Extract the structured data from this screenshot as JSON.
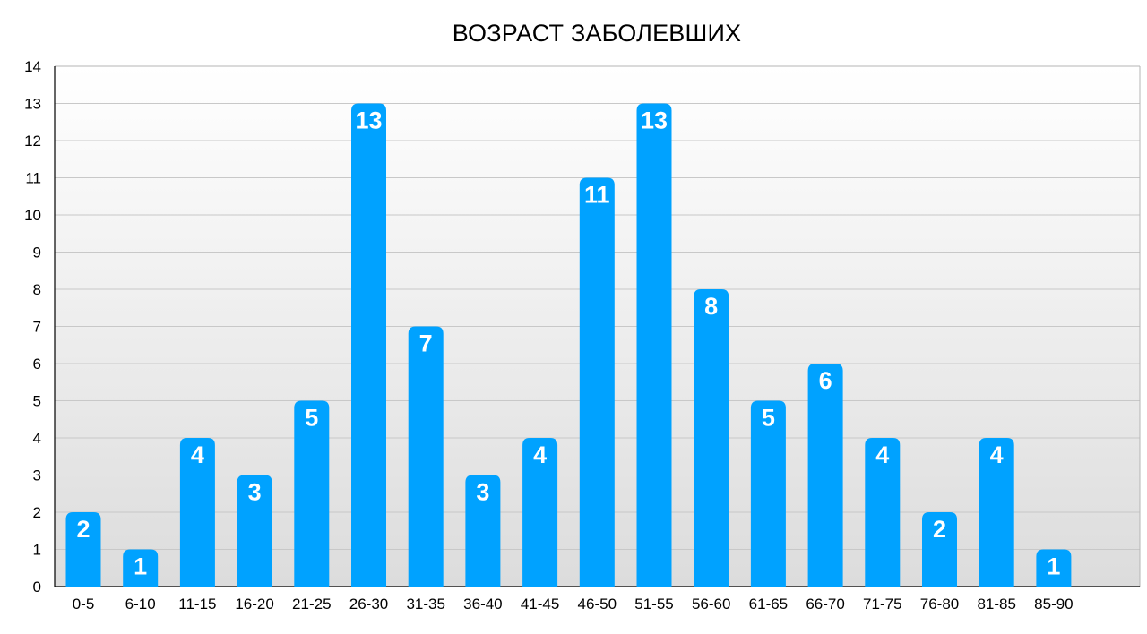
{
  "chart_data": {
    "type": "bar",
    "title": "ВОЗРАСТ ЗАБОЛЕВШИХ",
    "xlabel": "",
    "ylabel": "",
    "categories": [
      "0-5",
      "6-10",
      "11-15",
      "16-20",
      "21-25",
      "26-30",
      "31-35",
      "36-40",
      "41-45",
      "46-50",
      "51-55",
      "56-60",
      "61-65",
      "66-70",
      "71-75",
      "76-80",
      "81-85",
      "85-90"
    ],
    "values": [
      2,
      1,
      4,
      3,
      5,
      13,
      7,
      3,
      4,
      11,
      13,
      8,
      5,
      6,
      4,
      2,
      4,
      1
    ],
    "ylim": [
      0,
      14
    ],
    "yticks": [
      0,
      1,
      2,
      3,
      4,
      5,
      6,
      7,
      8,
      9,
      10,
      11,
      12,
      13,
      14
    ],
    "grid": true,
    "data_labels": true,
    "colors": {
      "bar": "#00a2ff",
      "grid": "#c8c8c8",
      "plot_bg_top": "#ffffff",
      "plot_bg_bottom": "#dcdcdc",
      "axis": "#000000"
    }
  }
}
